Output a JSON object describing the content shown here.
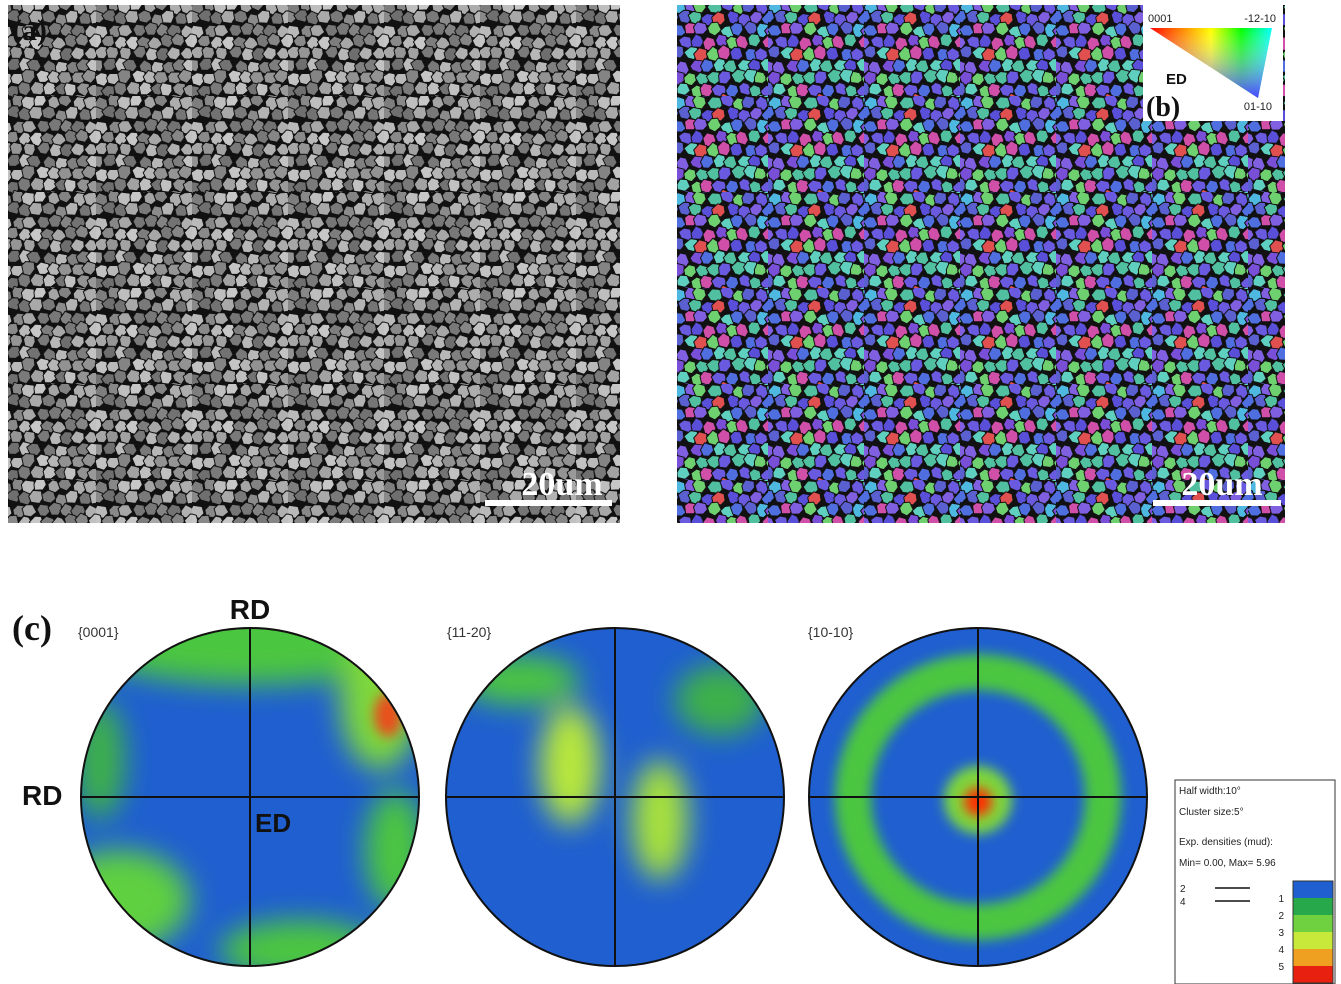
{
  "panel_a": {
    "label": "(a)",
    "scale_bar": "20um"
  },
  "panel_b": {
    "label": "(b)",
    "scale_bar": "20um",
    "ipf_key": {
      "top_left": "0001",
      "top_right": "-12-10",
      "bottom": "01-10",
      "direction": "ED"
    }
  },
  "panel_c": {
    "label": "(c)",
    "pole_figures": [
      {
        "title": "{0001}",
        "axis_top": "RD",
        "axis_left": "RD",
        "center": "ED"
      },
      {
        "title": "{11-20}"
      },
      {
        "title": "{10-10}"
      }
    ],
    "legend": {
      "half_width": "Half width:10°",
      "cluster_size": "Cluster size:5°",
      "densities_title": "Exp. densities (mud):",
      "range": "Min= 0.00, Max= 5.96",
      "contour_levels": [
        "2",
        "4"
      ],
      "color_levels": [
        "1",
        "2",
        "3",
        "4",
        "5"
      ]
    }
  }
}
